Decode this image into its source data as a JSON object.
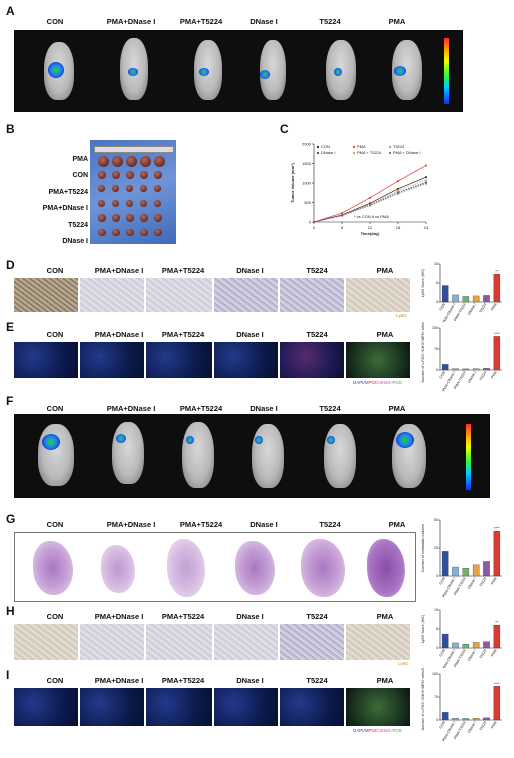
{
  "groups": [
    "CON",
    "PMA+DNase I",
    "PMA+T5224",
    "DNase I",
    "T5224",
    "PMA"
  ],
  "panel_letters": {
    "a": "A",
    "b": "B",
    "c": "C",
    "d": "D",
    "e": "E",
    "f": "F",
    "g": "G",
    "h": "H",
    "i": "I"
  },
  "panel_b": {
    "rows": [
      "PMA",
      "CON",
      "PMA+T5224",
      "PMA+DNase I",
      "T5224",
      "DNase I"
    ]
  },
  "panel_c": {
    "ylabel": "Tumor Volume (mm³)",
    "xlabel": "Time(day)",
    "yticks": [
      "0",
      "500",
      "1000",
      "1500",
      "2000"
    ],
    "xticks": [
      "0",
      "6",
      "12",
      "18",
      "24"
    ],
    "legend": [
      "CON",
      "PMA",
      "T5224",
      "DNase I",
      "PMA + T5224",
      "PMA + DNase I"
    ],
    "note": "* vs CON  # vs PMA"
  },
  "stain_labels": {
    "ly6g": "Ly6G",
    "if_dapi": "DAPI/",
    "if_mpo": "MPO/",
    "if_cith3": "CitH3/",
    "if_cfos": "c-FOS"
  },
  "bar_axes": {
    "d": "Ly6G Score (IHC)",
    "e": "Number of c-FOS⁺/CitH3⁺MPO⁺cells/field",
    "g": "Number of metastatic nodules",
    "h": "Ly6G Score (IHC)",
    "i": "Number of c-FOS⁺/CitH3⁺MPO⁺cells/field"
  },
  "bar_categories": [
    "CON",
    "PMA+DNase I",
    "PMA+T5224",
    "DNase I",
    "T5224",
    "PMA"
  ],
  "sig": {
    "d_top": "**",
    "e_top": "****",
    "g_top": "****",
    "h_top": "**",
    "i_top": "****"
  },
  "colors": {
    "blue": "#2f4ea3",
    "red": "#d93a32",
    "green": "#74b36b",
    "orange": "#e6a143",
    "purple": "#8a5aa8",
    "lightblue": "#7fb3d8"
  },
  "chart_data": [
    {
      "type": "line",
      "x": [
        0,
        6,
        12,
        18,
        24
      ],
      "series": [
        {
          "name": "CON",
          "values": [
            0,
            180,
            480,
            850,
            1150
          ]
        },
        {
          "name": "PMA",
          "values": [
            0,
            230,
            620,
            1050,
            1450
          ]
        },
        {
          "name": "T5224",
          "values": [
            0,
            160,
            420,
            720,
            980
          ]
        },
        {
          "name": "DNase I",
          "values": [
            0,
            170,
            440,
            760,
            1020
          ]
        },
        {
          "name": "PMA + T5224",
          "values": [
            0,
            170,
            450,
            800,
            1080
          ]
        },
        {
          "name": "PMA + DNase I",
          "values": [
            0,
            165,
            430,
            750,
            1000
          ]
        }
      ],
      "ylim": [
        0,
        2000
      ],
      "xlabel": "Time(day)",
      "ylabel": "Tumor Volume (mm³)"
    },
    {
      "type": "bar",
      "categories": [
        "CON",
        "PMA+DNase I",
        "PMA+T5224",
        "DNase I",
        "T5224",
        "PMA"
      ],
      "values": [
        6.5,
        2.8,
        2.2,
        2.4,
        2.6,
        11
      ],
      "ylim": [
        0,
        15
      ],
      "ylabel": "Ly6G Score (IHC)"
    },
    {
      "type": "bar",
      "categories": [
        "CON",
        "PMA+DNase I",
        "PMA+T5224",
        "DNase I",
        "T5224",
        "PMA"
      ],
      "values": [
        20,
        5,
        4,
        5,
        6,
        120
      ],
      "ylim": [
        0,
        150
      ],
      "ylabel": "Number of c-FOS⁺/CitH3⁺MPO⁺cells/field"
    },
    {
      "type": "bar",
      "categories": [
        "CON",
        "PMA+DNase I",
        "PMA+T5224",
        "DNase I",
        "T5224",
        "PMA"
      ],
      "values": [
        22,
        8,
        7,
        10,
        13,
        40
      ],
      "ylim": [
        0,
        50
      ],
      "ylabel": "Number of metastatic nodules"
    },
    {
      "type": "bar",
      "categories": [
        "CON",
        "PMA+DNase I",
        "PMA+T5224",
        "DNase I",
        "T5224",
        "PMA"
      ],
      "values": [
        5.5,
        2,
        1.5,
        2.2,
        2.5,
        9
      ],
      "ylim": [
        0,
        15
      ],
      "ylabel": "Ly6G Score (IHC)"
    },
    {
      "type": "bar",
      "categories": [
        "CON",
        "PMA+DNase I",
        "PMA+T5224",
        "DNase I",
        "T5224",
        "PMA"
      ],
      "values": [
        25,
        6,
        5,
        6,
        7,
        110
      ],
      "ylim": [
        0,
        150
      ],
      "ylabel": "Number of c-FOS⁺/CitH3⁺MPO⁺cells/field"
    }
  ]
}
